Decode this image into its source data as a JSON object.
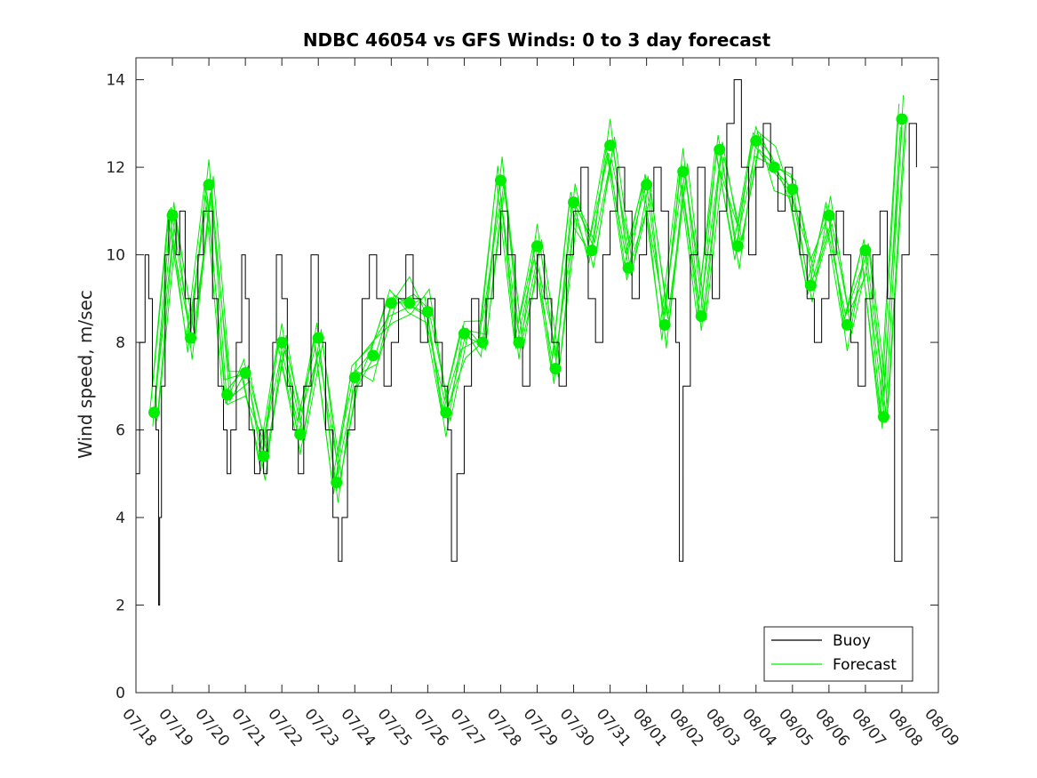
{
  "chart_data": {
    "type": "line",
    "title": "NDBC 46054 vs GFS Winds: 0 to 3 day forecast",
    "xlabel": "",
    "ylabel": "Wind speed, m/sec",
    "x_ticks": [
      "07/18",
      "07/19",
      "07/20",
      "07/21",
      "07/22",
      "07/23",
      "07/24",
      "07/25",
      "07/26",
      "07/27",
      "07/28",
      "07/29",
      "07/30",
      "07/31",
      "08/01",
      "08/02",
      "08/03",
      "08/04",
      "08/05",
      "08/06",
      "08/07",
      "08/08",
      "08/09"
    ],
    "xlim_days": [
      0,
      22
    ],
    "ylim": [
      0,
      14.5
    ],
    "y_ticks": [
      0,
      2,
      4,
      6,
      8,
      10,
      12,
      14
    ],
    "grid": false,
    "legend": {
      "position": "bottom-right",
      "entries": [
        "Buoy",
        "Forecast"
      ]
    },
    "colors": {
      "buoy": "#000000",
      "forecast": "#00ee00",
      "markers": "#00ee00"
    },
    "series": [
      {
        "name": "Buoy",
        "x_days": [
          0,
          0.1,
          0.15,
          0.25,
          0.35,
          0.45,
          0.55,
          0.62,
          0.65,
          0.7,
          0.8,
          0.9,
          1.0,
          1.1,
          1.2,
          1.35,
          1.5,
          1.6,
          1.7,
          1.85,
          2.0,
          2.1,
          2.25,
          2.4,
          2.5,
          2.6,
          2.75,
          2.9,
          3.0,
          3.1,
          3.25,
          3.4,
          3.5,
          3.6,
          3.75,
          3.85,
          4.0,
          4.15,
          4.3,
          4.45,
          4.6,
          4.8,
          5.0,
          5.2,
          5.4,
          5.55,
          5.65,
          5.8,
          6.0,
          6.2,
          6.4,
          6.6,
          6.8,
          7.0,
          7.2,
          7.4,
          7.6,
          7.8,
          8.0,
          8.2,
          8.4,
          8.55,
          8.65,
          8.8,
          9.0,
          9.2,
          9.4,
          9.6,
          9.8,
          10.0,
          10.2,
          10.4,
          10.6,
          10.8,
          11.0,
          11.2,
          11.4,
          11.6,
          11.8,
          12.0,
          12.2,
          12.4,
          12.6,
          12.8,
          13.0,
          13.2,
          13.4,
          13.6,
          13.8,
          14.0,
          14.2,
          14.4,
          14.6,
          14.8,
          14.9,
          15.0,
          15.2,
          15.4,
          15.6,
          15.8,
          16.0,
          16.2,
          16.4,
          16.6,
          16.8,
          17.0,
          17.2,
          17.4,
          17.6,
          17.8,
          18.0,
          18.2,
          18.4,
          18.6,
          18.8,
          19.0,
          19.2,
          19.4,
          19.6,
          19.8,
          20.0,
          20.2,
          20.4,
          20.6,
          20.8,
          21.0,
          21.2,
          21.4
        ],
        "values": [
          5,
          8,
          8,
          10,
          9,
          7,
          6,
          2,
          4,
          7,
          10,
          11,
          11,
          10,
          11,
          9,
          8,
          9,
          10,
          11,
          11,
          9,
          7,
          6,
          5,
          6,
          8,
          10,
          9,
          6,
          5,
          6,
          5,
          6,
          8,
          10,
          9,
          7,
          6,
          5,
          7,
          10,
          8,
          6,
          4,
          3,
          4,
          6,
          7,
          9,
          10,
          9,
          7,
          8,
          9,
          10,
          9,
          8,
          9,
          8,
          7,
          6,
          3,
          5,
          7,
          9,
          8,
          9,
          10,
          11,
          10,
          8,
          7,
          9,
          10,
          9,
          8,
          7,
          10,
          11,
          12,
          9,
          8,
          10,
          11,
          12,
          11,
          9,
          10,
          11,
          12,
          11,
          9,
          8,
          3,
          7,
          10,
          12,
          10,
          9,
          11,
          13,
          14,
          12,
          10,
          12,
          13,
          12,
          11,
          12,
          11,
          10,
          9,
          8,
          9,
          10,
          11,
          10,
          8,
          7,
          9,
          10,
          11,
          9,
          3,
          10,
          13,
          12
        ]
      },
      {
        "name": "Forecast",
        "x_days": [
          0.5,
          1.0,
          1.5,
          2.0,
          2.5,
          3.0,
          3.5,
          4.0,
          4.5,
          5.0,
          5.5,
          6.0,
          6.5,
          7.0,
          7.5,
          8.0,
          8.5,
          9.0,
          9.5,
          10.0,
          10.5,
          11.0,
          11.5,
          12.0,
          12.5,
          13.0,
          13.5,
          14.0,
          14.5,
          15.0,
          15.5,
          16.0,
          16.5,
          17.0,
          17.5,
          18.0,
          18.5,
          19.0,
          19.5,
          20.0,
          20.5,
          21.0
        ],
        "values": [
          6.4,
          10.9,
          8.1,
          11.6,
          6.8,
          7.3,
          5.4,
          8.0,
          5.9,
          8.1,
          4.8,
          7.2,
          7.7,
          8.9,
          8.9,
          8.7,
          6.4,
          8.2,
          8.0,
          11.7,
          8.0,
          10.2,
          7.4,
          11.2,
          10.1,
          12.5,
          9.7,
          11.6,
          8.4,
          11.9,
          8.6,
          12.4,
          10.2,
          12.6,
          12.0,
          11.5,
          9.3,
          10.9,
          8.4,
          10.1,
          6.3,
          13.1
        ]
      }
    ]
  }
}
